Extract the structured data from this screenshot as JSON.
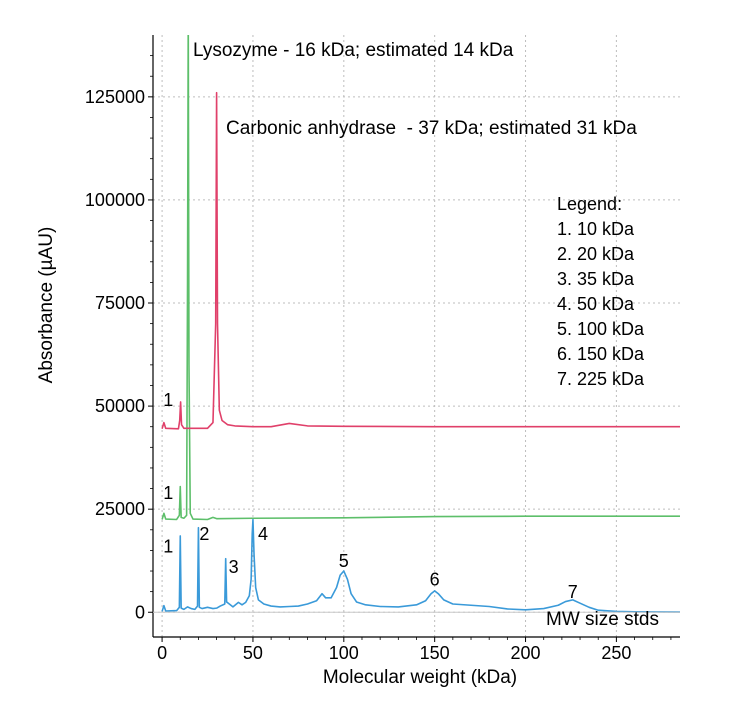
{
  "chart_data": {
    "type": "line",
    "xlabel": "Molecular weight (kDa)",
    "ylabel": "Absorbance (µAU)",
    "xlim": [
      -5,
      285
    ],
    "ylim": [
      -6000,
      140000
    ],
    "xticks": [
      0,
      50,
      100,
      150,
      200,
      250
    ],
    "yticks": [
      0,
      25000,
      50000,
      75000,
      100000,
      125000
    ],
    "grid": true,
    "colors": {
      "mw_stds": "#3a9ad9",
      "lysozyme": "#5dbf6a",
      "carbonic": "#e0406a",
      "axis": "#000000",
      "grid": "#bdbdbd"
    },
    "series": [
      {
        "name": "MW size stds",
        "color": "#3a9ad9",
        "baseline": 0,
        "points": [
          [
            0,
            200
          ],
          [
            1,
            1600
          ],
          [
            2,
            300
          ],
          [
            8,
            400
          ],
          [
            9.5,
            1200
          ],
          [
            10,
            18500
          ],
          [
            10.5,
            1000
          ],
          [
            12,
            700
          ],
          [
            14,
            1300
          ],
          [
            16,
            900
          ],
          [
            18,
            700
          ],
          [
            19.5,
            1500
          ],
          [
            20,
            20500
          ],
          [
            20.5,
            1200
          ],
          [
            22,
            900
          ],
          [
            25,
            1200
          ],
          [
            28,
            900
          ],
          [
            30,
            1000
          ],
          [
            32,
            1500
          ],
          [
            34.5,
            2000
          ],
          [
            35,
            13000
          ],
          [
            35.5,
            2500
          ],
          [
            37,
            2000
          ],
          [
            39,
            1300
          ],
          [
            42,
            2400
          ],
          [
            44,
            1800
          ],
          [
            46,
            2400
          ],
          [
            48,
            4000
          ],
          [
            49,
            8000
          ],
          [
            49.6,
            19000
          ],
          [
            50,
            22500
          ],
          [
            50.6,
            14000
          ],
          [
            51.5,
            6000
          ],
          [
            53,
            3000
          ],
          [
            56,
            2000
          ],
          [
            60,
            1500
          ],
          [
            65,
            1300
          ],
          [
            70,
            1400
          ],
          [
            75,
            1500
          ],
          [
            80,
            2000
          ],
          [
            85,
            2800
          ],
          [
            88,
            4500
          ],
          [
            90,
            3500
          ],
          [
            93,
            3500
          ],
          [
            96,
            6000
          ],
          [
            98,
            9000
          ],
          [
            100,
            10000
          ],
          [
            102,
            8000
          ],
          [
            104,
            4500
          ],
          [
            107,
            2500
          ],
          [
            112,
            1800
          ],
          [
            120,
            1400
          ],
          [
            130,
            1300
          ],
          [
            140,
            1800
          ],
          [
            145,
            2800
          ],
          [
            148,
            4500
          ],
          [
            150,
            5200
          ],
          [
            152,
            4500
          ],
          [
            155,
            3000
          ],
          [
            160,
            2000
          ],
          [
            170,
            1700
          ],
          [
            180,
            1400
          ],
          [
            190,
            800
          ],
          [
            200,
            600
          ],
          [
            210,
            900
          ],
          [
            218,
            1700
          ],
          [
            222,
            2600
          ],
          [
            226,
            3000
          ],
          [
            230,
            2200
          ],
          [
            235,
            1200
          ],
          [
            240,
            500
          ],
          [
            250,
            200
          ],
          [
            260,
            100
          ],
          [
            270,
            80
          ],
          [
            285,
            50
          ]
        ]
      },
      {
        "name": "Lysozyme - 16 kDa; estimated 14 kDa",
        "color": "#5dbf6a",
        "baseline": 22500,
        "points": [
          [
            0,
            22500
          ],
          [
            1,
            24000
          ],
          [
            2,
            22600
          ],
          [
            8,
            22500
          ],
          [
            9.5,
            23500
          ],
          [
            10,
            30500
          ],
          [
            10.5,
            23000
          ],
          [
            12,
            22800
          ],
          [
            13.5,
            23500
          ],
          [
            14,
            80000
          ],
          [
            14.4,
            145000
          ],
          [
            14.8,
            60000
          ],
          [
            15.5,
            24000
          ],
          [
            17,
            22600
          ],
          [
            25,
            22500
          ],
          [
            28,
            23000
          ],
          [
            30,
            22700
          ],
          [
            50,
            22800
          ],
          [
            100,
            22900
          ],
          [
            150,
            23200
          ],
          [
            200,
            23300
          ],
          [
            250,
            23300
          ],
          [
            285,
            23300
          ]
        ]
      },
      {
        "name": "Carbonic anhydrase - 37 kDa; estimated 31 kDa",
        "color": "#e0406a",
        "baseline": 44500,
        "points": [
          [
            0,
            44500
          ],
          [
            1,
            46000
          ],
          [
            2,
            44600
          ],
          [
            9,
            44500
          ],
          [
            9.7,
            46500
          ],
          [
            10.2,
            51000
          ],
          [
            10.7,
            45500
          ],
          [
            12,
            44600
          ],
          [
            25,
            44600
          ],
          [
            28,
            46000
          ],
          [
            29.5,
            70000
          ],
          [
            30,
            126000
          ],
          [
            30.5,
            70000
          ],
          [
            31.5,
            49000
          ],
          [
            33,
            46500
          ],
          [
            36,
            45500
          ],
          [
            40,
            45200
          ],
          [
            50,
            45000
          ],
          [
            60,
            45000
          ],
          [
            70,
            45800
          ],
          [
            80,
            45200
          ],
          [
            100,
            45100
          ],
          [
            150,
            45000
          ],
          [
            200,
            45000
          ],
          [
            250,
            45000
          ],
          [
            285,
            45000
          ]
        ]
      }
    ],
    "annotations": [
      {
        "text": "Lysozyme - 16 kDa; estimated 14 kDa"
      },
      {
        "text": "Carbonic anhydrase  - 37 kDa; estimated 31 kDa"
      },
      {
        "text": "MW size stds"
      }
    ],
    "peak_labels": [
      {
        "text": "1",
        "x": 10,
        "y": 50000
      },
      {
        "text": "1",
        "x": 10,
        "y": 27500
      },
      {
        "text": "1",
        "x": 10,
        "y": 14500
      },
      {
        "text": "2",
        "x": 20,
        "y": 17500
      },
      {
        "text": "3",
        "x": 35,
        "y": 9500
      },
      {
        "text": "4",
        "x": 50,
        "y": 17500
      },
      {
        "text": "5",
        "x": 100,
        "y": 11000
      },
      {
        "text": "6",
        "x": 150,
        "y": 6500
      },
      {
        "text": "7",
        "x": 226,
        "y": 3500
      }
    ],
    "legend": {
      "title": "Legend:",
      "items": [
        "1. 10 kDa",
        "2. 20 kDa",
        "3. 35 kDa",
        "4. 50 kDa",
        "5. 100 kDa",
        "6. 150 kDa",
        "7. 225 kDa"
      ]
    }
  }
}
